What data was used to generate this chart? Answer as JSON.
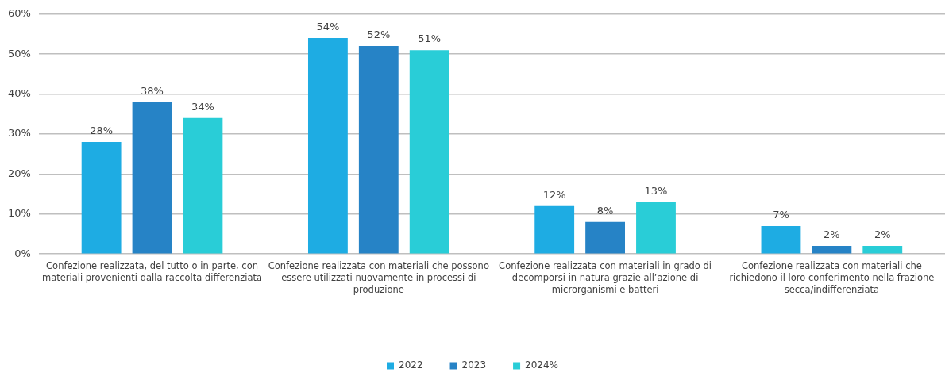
{
  "chart_data": {
    "type": "bar",
    "categories": [
      "Confezione realizzata, del tutto o in parte, con materiali provenienti dalla raccolta differenziata",
      "Confezione realizzata con materiali che possono essere utilizzati nuovamente in processi di produzione",
      "Confezione realizzata con materiali in grado di decomporsi in natura grazie all’azione di microrganismi e batteri",
      "Confezione realizzata con materiali che richiedono il loro conferimento nella frazione secca/indifferenziata"
    ],
    "series": [
      {
        "name": "2022",
        "color": "#1eace3",
        "values": [
          28,
          54,
          12,
          7
        ],
        "value_labels": [
          "28%",
          "54%",
          "12%",
          "7%"
        ]
      },
      {
        "name": "2023",
        "color": "#2683c6",
        "values": [
          38,
          52,
          8,
          2
        ],
        "value_labels": [
          "38%",
          "52%",
          "8%",
          "2%"
        ]
      },
      {
        "name": "2024%",
        "color": "#29cdd7",
        "values": [
          34,
          51,
          13,
          2
        ],
        "value_labels": [
          "34%",
          "51%",
          "13%",
          "2%"
        ]
      }
    ],
    "ylim": [
      0,
      60
    ],
    "yticks": [
      {
        "value": 0,
        "label": "0%"
      },
      {
        "value": 10,
        "label": "10%"
      },
      {
        "value": 20,
        "label": "20%"
      },
      {
        "value": 30,
        "label": "30%"
      },
      {
        "value": 40,
        "label": "40%"
      },
      {
        "value": 50,
        "label": "50%"
      },
      {
        "value": 60,
        "label": "60%"
      }
    ],
    "grid": "y",
    "legend": "bottom"
  }
}
